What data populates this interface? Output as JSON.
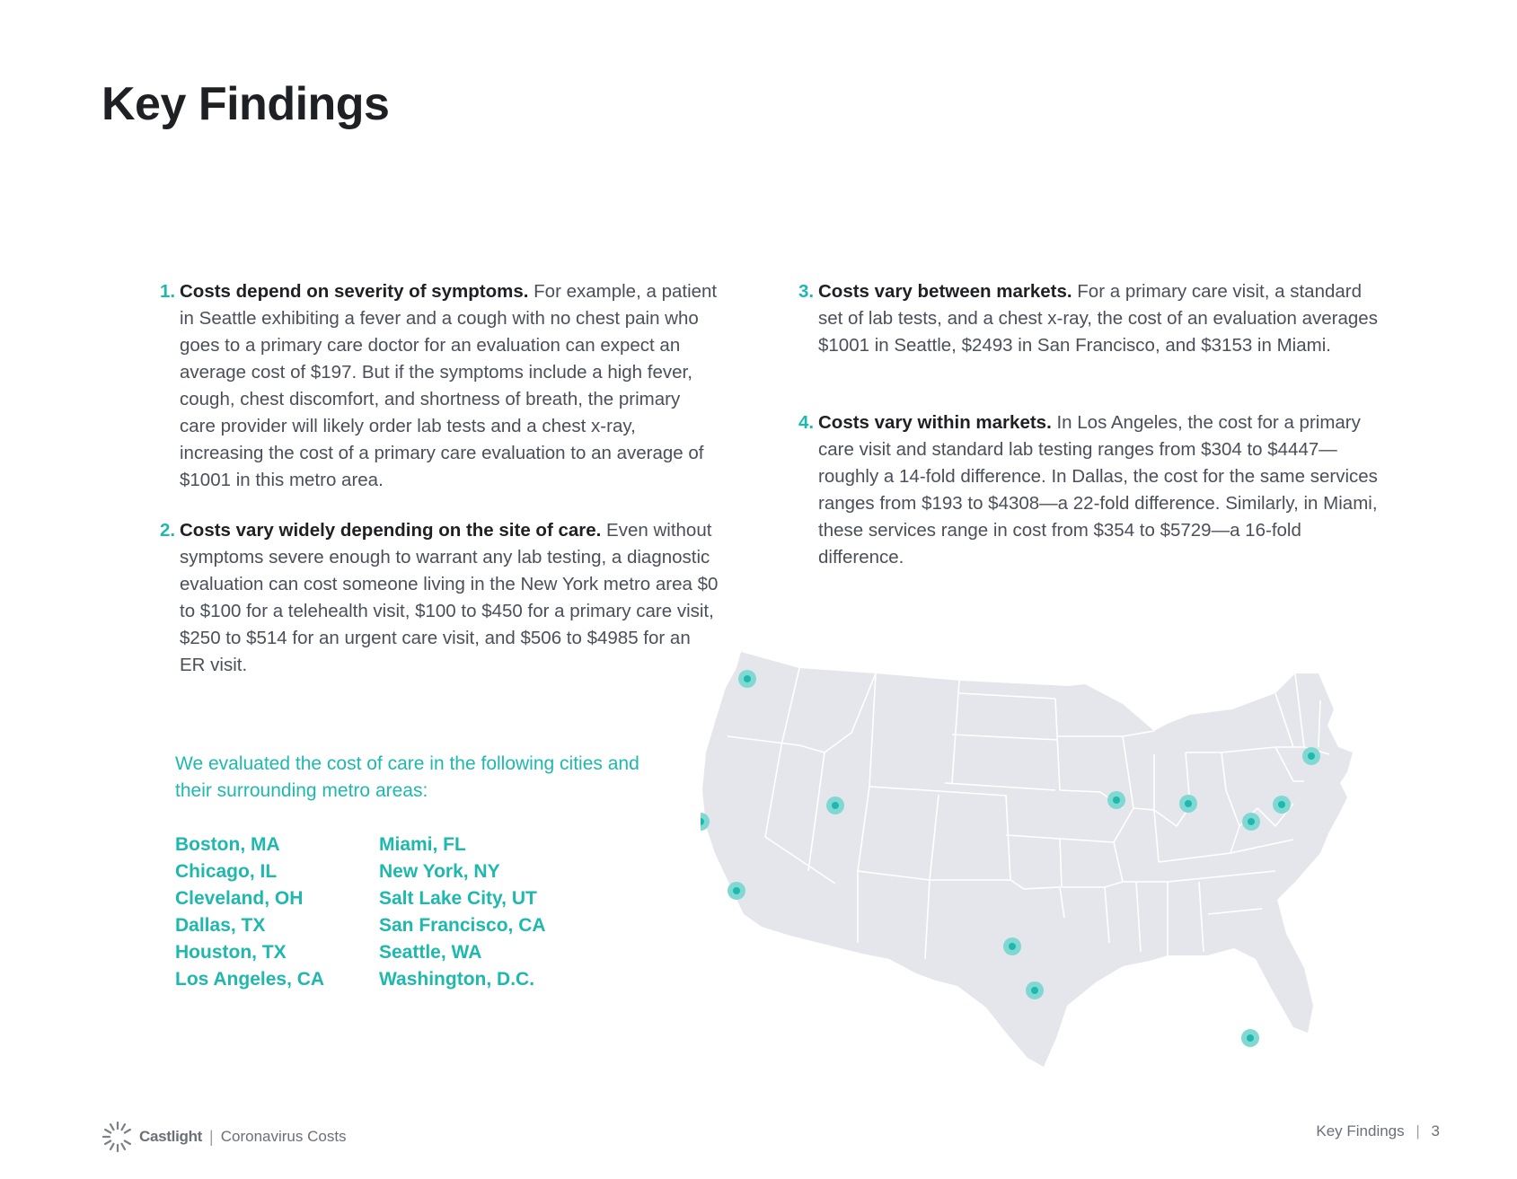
{
  "page": {
    "title": "Key Findings"
  },
  "findings": [
    {
      "number": "1.",
      "heading": "Costs depend on severity of symptoms.",
      "body": "For example, a patient in Seattle exhibiting a fever and a cough with no chest pain who goes to a primary care doctor for an evaluation can expect an average cost of $197. But if the symptoms include a high fever, cough, chest discomfort, and shortness of breath, the primary care provider will likely order lab tests and a chest x-ray, increasing the cost of a primary care evaluation to an average of $1001 in this metro area."
    },
    {
      "number": "2.",
      "heading": "Costs vary widely depending on the site of care.",
      "body": "Even without symptoms severe enough to warrant any lab testing, a diagnostic evaluation can cost someone living in the New York metro area $0 to $100 for a telehealth visit, $100 to $450 for a primary care visit, $250 to $514 for an urgent care visit, and $506 to $4985 for an ER visit."
    },
    {
      "number": "3.",
      "heading": "Costs vary between markets.",
      "body": "For a primary care visit, a standard set of lab tests, and a chest x-ray, the cost of an evaluation averages $1001 in Seattle, $2493 in San Francisco, and $3153 in Miami."
    },
    {
      "number": "4.",
      "heading": "Costs vary within markets.",
      "body": "In Los Angeles, the cost for a primary care visit and standard lab testing ranges from $304 to $4447—roughly a 14-fold difference. In Dallas, the cost for the same services ranges from $193 to $4308—a 22-fold difference. Similarly, in Miami, these services range in cost from $354 to $5729—a 16-fold difference."
    }
  ],
  "cities": {
    "intro": "We evaluated the cost of care in the following cities and their surrounding metro areas:",
    "column_1": [
      "Boston, MA",
      "Chicago, IL",
      "Cleveland, OH",
      "Dallas, TX",
      "Houston, TX",
      "Los Angeles, CA"
    ],
    "column_2": [
      "Miami, FL",
      "New York, NY",
      "Salt Lake City, UT",
      "San Francisco, CA",
      "Seattle, WA",
      "Washington, D.C."
    ]
  },
  "map": {
    "land_color": "#e4e6ec",
    "border_color": "#ffffff",
    "marker_color": "#1fb8ad",
    "marker_halo_color": "#7fd9d2"
  },
  "footer": {
    "brand": "Castlight",
    "separator": "|",
    "document": "Coronavirus Costs",
    "section": "Key Findings",
    "page_number": "3"
  },
  "colors": {
    "accent": "#1fb8ad",
    "heading": "#1f2024",
    "body_text": "#4a4f5a"
  }
}
